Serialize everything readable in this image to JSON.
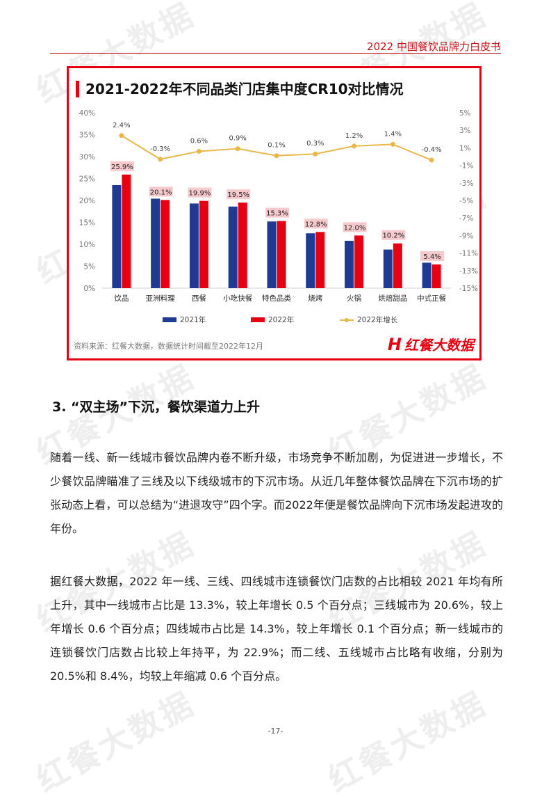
{
  "header": {
    "title": "2022 中国餐饮品牌力白皮书"
  },
  "watermark": "红餐大数据",
  "chart_panel": {
    "source": "资料来源：红餐大数据，数据统计时间截至2022年12月",
    "logo": "红餐大数据",
    "logo_mark": "H",
    "accent_color": "#e60012"
  },
  "chart_data": {
    "type": "bar",
    "title": "2021-2022年不同品类门店集中度CR10对比情况",
    "categories": [
      "饮品",
      "亚洲料理",
      "西餐",
      "小吃快餐",
      "特色品类",
      "烧烤",
      "火锅",
      "烘焙甜品",
      "中式正餐"
    ],
    "series": [
      {
        "name": "2021年",
        "type": "bar",
        "axis": "left",
        "color": "#1f3a93",
        "values": [
          23.5,
          20.4,
          19.3,
          18.6,
          15.2,
          12.5,
          10.8,
          8.8,
          5.8
        ]
      },
      {
        "name": "2022年",
        "type": "bar",
        "axis": "left",
        "color": "#e60012",
        "values": [
          25.9,
          20.1,
          19.9,
          19.5,
          15.3,
          12.8,
          12.0,
          10.2,
          5.4
        ],
        "labels": [
          "25.9%",
          "20.1%",
          "19.9%",
          "19.5%",
          "15.3%",
          "12.8%",
          "12.0%",
          "10.2%",
          "5.4%"
        ]
      },
      {
        "name": "2022年增长",
        "type": "line",
        "axis": "right",
        "color": "#e8b84a",
        "values": [
          2.4,
          -0.3,
          0.6,
          0.9,
          0.1,
          0.3,
          1.2,
          1.4,
          -0.4
        ],
        "labels": [
          "2.4%",
          "-0.3%",
          "0.6%",
          "0.9%",
          "0.1%",
          "0.3%",
          "1.2%",
          "1.4%",
          "-0.4%"
        ]
      }
    ],
    "ylim": [
      0,
      40
    ],
    "yticks": [
      "0%",
      "5%",
      "10%",
      "15%",
      "20%",
      "25%",
      "30%",
      "35%",
      "40%"
    ],
    "y2lim": [
      -15,
      5
    ],
    "y2ticks": [
      "-15%",
      "-13%",
      "-11%",
      "-9%",
      "-7%",
      "-5%",
      "-3%",
      "-1%",
      "1%",
      "3%",
      "5%"
    ],
    "grid": false,
    "legend": "bottom"
  },
  "section": {
    "heading": "3. “双主场”下沉，餐饮渠道力上升"
  },
  "paragraphs": [
    "随着一线、新一线城市餐饮品牌内卷不断升级，市场竞争不断加剧，为促进进一步增长，不少餐饮品牌瞄准了三线及以下线级城市的下沉市场。从近几年整体餐饮品牌在下沉市场的扩张动态上看，可以总结为“进退攻守”四个字。而2022年便是餐饮品牌向下沉市场发起进攻的年份。",
    "据红餐大数据，2022 年一线、三线、四线城市连锁餐饮门店数的占比相较 2021 年均有所上升，其中一线城市占比是 13.3%，较上年增长 0.5 个百分点；三线城市为 20.6%，较上年增长 0.6 个百分点；四线城市占比是 14.3%，较上年增长 0.1 个百分点；新一线城市的连锁餐饮门店数占比较上年持平，为 22.9%；而二线、五线城市占比略有收缩，分别为 20.5%和 8.4%，均较上年缩减 0.6 个百分点。"
  ],
  "footer": {
    "page_number": "-17-"
  }
}
